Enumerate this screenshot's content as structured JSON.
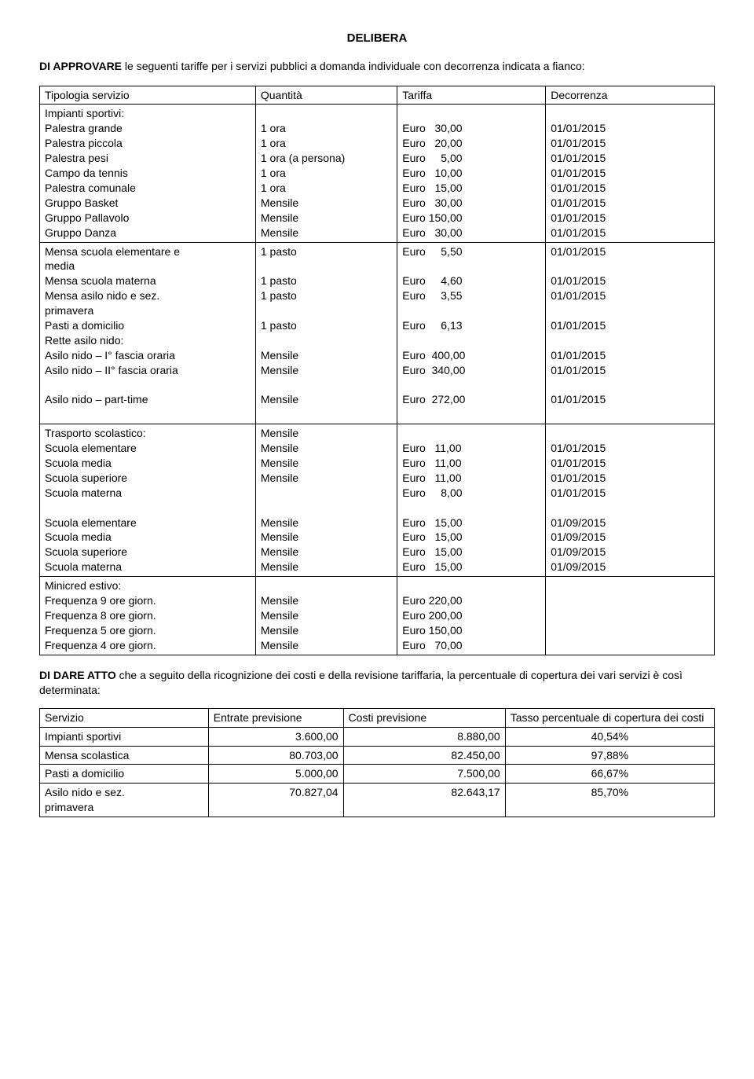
{
  "title": "DELIBERA",
  "intro_bold": "DI APPROVARE",
  "intro_rest": " le seguenti tariffe per i servizi pubblici a domanda individuale con decorrenza indicata a fianco:",
  "header": {
    "c1": "Tipologia servizio",
    "c2": "Quantità",
    "c3": "Tariffa",
    "c4": "Decorrenza"
  },
  "section1": {
    "heading": "Impianti sportivi:",
    "rows": [
      {
        "s": "Palestra grande",
        "q": "1 ora",
        "t": "Euro   30,00",
        "d": "01/01/2015"
      },
      {
        "s": "Palestra piccola",
        "q": "1 ora",
        "t": "Euro   20,00",
        "d": "01/01/2015"
      },
      {
        "s": "Palestra pesi",
        "q": "1 ora (a persona)",
        "t": "Euro     5,00",
        "d": "01/01/2015"
      },
      {
        "s": "Campo da tennis",
        "q": "1 ora",
        "t": "Euro   10,00",
        "d": "01/01/2015"
      },
      {
        "s": "Palestra comunale",
        "q": "1 ora",
        "t": "Euro   15,00",
        "d": "01/01/2015"
      },
      {
        "s": "Gruppo Basket",
        "q": "Mensile",
        "t": "Euro   30,00",
        "d": "01/01/2015"
      },
      {
        "s": "Gruppo Pallavolo",
        "q": "Mensile",
        "t": "Euro 150,00",
        "d": "01/01/2015"
      },
      {
        "s": "Gruppo Danza",
        "q": "Mensile",
        "t": "Euro   30,00",
        "d": "01/01/2015"
      }
    ]
  },
  "section2": {
    "rows": [
      {
        "s": "Mensa scuola elementare e media",
        "q": "1 pasto",
        "t": "Euro     5,50",
        "d": "01/01/2015"
      },
      {
        "s": "Mensa scuola materna",
        "q": "1 pasto",
        "t": "Euro     4,60",
        "d": "01/01/2015"
      },
      {
        "s": "Mensa asilo nido e sez. primavera",
        "q": "1 pasto",
        "t": "Euro     3,55",
        "d": "01/01/2015"
      },
      {
        "s": "Pasti a domicilio",
        "q": "1 pasto",
        "t": "Euro     6,13",
        "d": "01/01/2015"
      }
    ],
    "heading2": "Rette asilo nido:",
    "rows2": [
      {
        "s": "Asilo nido – I° fascia oraria",
        "q": "Mensile",
        "t": "Euro  400,00",
        "d": "01/01/2015"
      },
      {
        "s": "Asilo nido – II° fascia oraria",
        "q": "Mensile",
        "t": "Euro  340,00",
        "d": "01/01/2015"
      }
    ],
    "rows3": [
      {
        "s": "Asilo nido – part-time",
        "q": "Mensile",
        "t": "Euro  272,00",
        "d": "01/01/2015"
      }
    ]
  },
  "section3": {
    "heading": "Trasporto scolastico:",
    "heading_qty": "Mensile",
    "rows": [
      {
        "s": "Scuola  elementare",
        "q": "Mensile",
        "t": "Euro   11,00",
        "d": "01/01/2015"
      },
      {
        "s": "Scuola media",
        "q": "Mensile",
        "t": "Euro   11,00",
        "d": "01/01/2015"
      },
      {
        "s": "Scuola superiore",
        "q": "Mensile",
        "t": "Euro   11,00",
        "d": "01/01/2015"
      },
      {
        "s": "Scuola materna",
        "q": "",
        "t": "Euro     8,00",
        "d": "01/01/2015"
      }
    ],
    "rows2": [
      {
        "s": "Scuola  elementare",
        "q": "Mensile",
        "t": "Euro   15,00",
        "d": "01/09/2015"
      },
      {
        "s": "Scuola media",
        "q": "Mensile",
        "t": "Euro   15,00",
        "d": "01/09/2015"
      },
      {
        "s": "Scuola superiore",
        "q": "Mensile",
        "t": "Euro   15,00",
        "d": "01/09/2015"
      },
      {
        "s": "Scuola materna",
        "q": "Mensile",
        "t": "Euro   15,00",
        "d": "01/09/2015"
      }
    ]
  },
  "section4": {
    "heading": "Minicred estivo:",
    "rows": [
      {
        "s": "Frequenza 9 ore giorn.",
        "q": "Mensile",
        "t": "Euro 220,00",
        "d": ""
      },
      {
        "s": "Frequenza 8 ore giorn.",
        "q": "Mensile",
        "t": "Euro 200,00",
        "d": ""
      },
      {
        "s": "Frequenza 5 ore giorn.",
        "q": "Mensile",
        "t": "Euro 150,00",
        "d": ""
      },
      {
        "s": "Frequenza 4 ore giorn.",
        "q": "Mensile",
        "t": "Euro   70,00",
        "d": ""
      }
    ]
  },
  "closing_bold": "DI DARE ATTO",
  "closing_rest": " che a seguito della ricognizione dei costi e della revisione tariffaria, la percentuale di copertura dei vari servizi è così determinata:",
  "table2_header": {
    "c1": "Servizio",
    "c2": "Entrate previsione",
    "c3": "Costi previsione",
    "c4": "Tasso percentuale di copertura dei costi"
  },
  "table2_rows": [
    {
      "c1": "Impianti sportivi",
      "c2": "3.600,00",
      "c3": "8.880,00",
      "c4": "40,54%"
    },
    {
      "c1": "Mensa scolastica",
      "c2": "80.703,00",
      "c3": "82.450,00",
      "c4": "97,88%"
    },
    {
      "c1": "Pasti a domicilio",
      "c2": "5.000,00",
      "c3": "7.500,00",
      "c4": "66,67%"
    },
    {
      "c1": "Asilo nido e sez. primavera",
      "c2": "70.827,04",
      "c3": "82.643,17",
      "c4": "85,70%"
    }
  ]
}
